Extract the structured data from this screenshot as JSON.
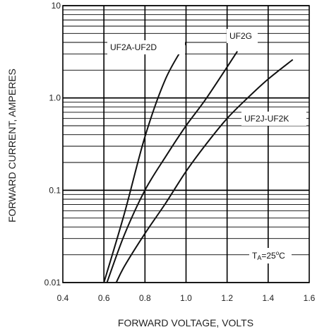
{
  "chart_data": {
    "type": "line",
    "title": "",
    "xlabel": "FORWARD VOLTAGE, VOLTS",
    "ylabel": "FORWARD CURRENT, AMPERES",
    "xlim": [
      0.4,
      1.6
    ],
    "ylim": [
      0.01,
      10
    ],
    "yscale": "log",
    "grid": true,
    "x_ticks": [
      "0.4",
      "0.6",
      "0.8",
      "1.0",
      "1.2",
      "1.4",
      "1.6"
    ],
    "y_ticks": [
      "0.01",
      "0.1",
      "1.0",
      "10"
    ],
    "series": [
      {
        "name": "UF2A-UF2D",
        "x": [
          0.6,
          0.7,
          0.8,
          0.9,
          1.0
        ],
        "y": [
          0.01,
          0.056,
          0.38,
          1.6,
          4.0
        ]
      },
      {
        "name": "UF2G",
        "x": [
          0.615,
          0.7,
          0.8,
          0.9,
          1.0,
          1.1,
          1.25
        ],
        "y": [
          0.01,
          0.033,
          0.1,
          0.23,
          0.5,
          1.0,
          3.2
        ]
      },
      {
        "name": "UF2J-UF2K",
        "x": [
          0.66,
          0.7,
          0.8,
          0.9,
          1.0,
          1.1,
          1.2,
          1.3,
          1.4,
          1.52
        ],
        "y": [
          0.01,
          0.015,
          0.034,
          0.072,
          0.16,
          0.32,
          0.6,
          1.0,
          1.6,
          2.6
        ]
      }
    ],
    "annotations": [
      {
        "text_main": "T",
        "text_sub": "A",
        "text_rest": "=25",
        "text_sup": "o",
        "text_end": "C"
      }
    ]
  }
}
